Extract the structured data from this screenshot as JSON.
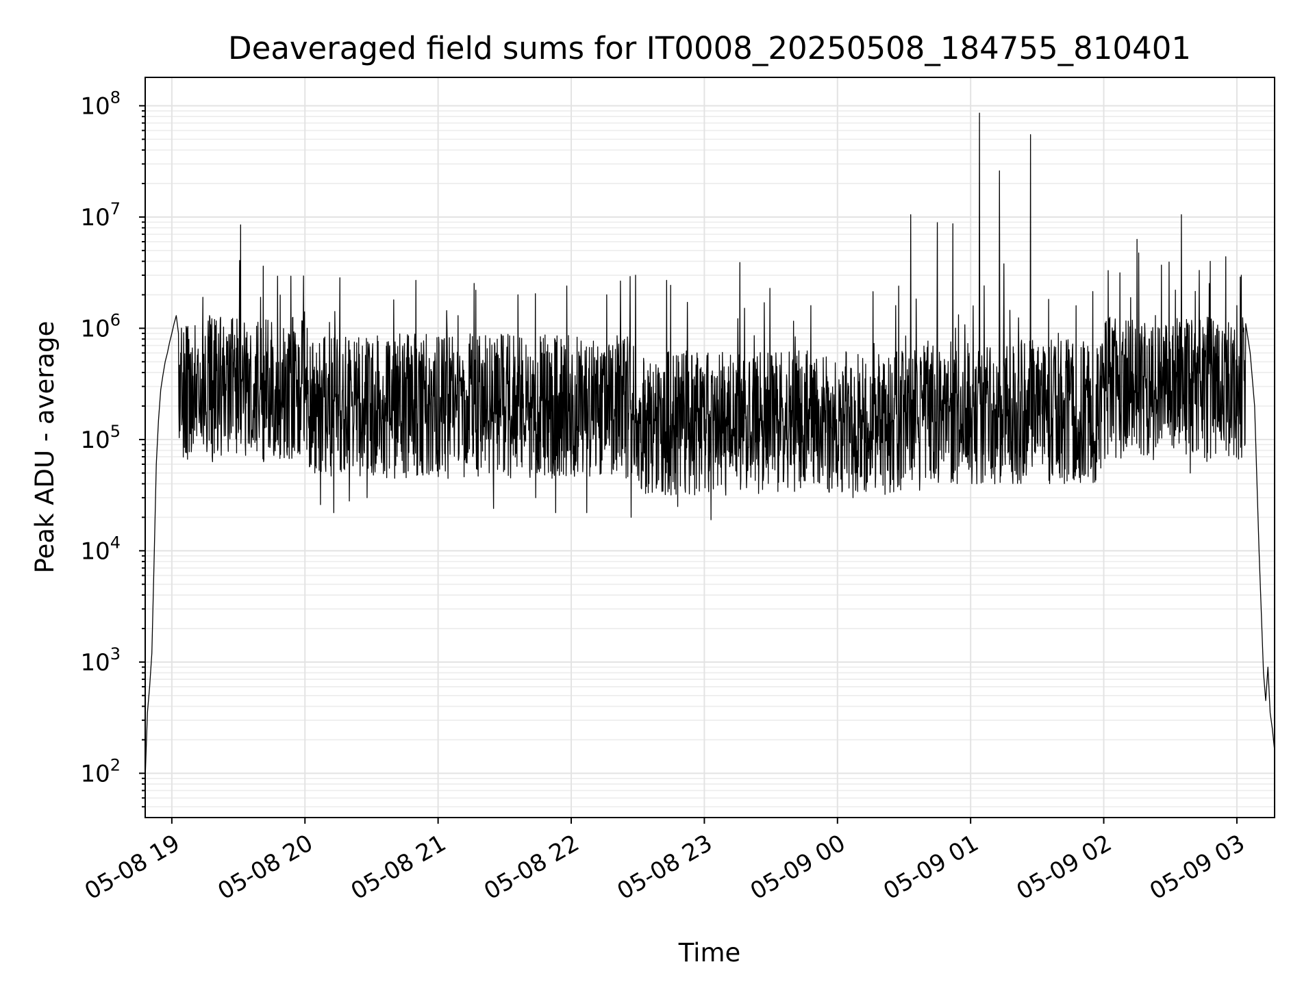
{
  "chart_data": {
    "type": "line",
    "title": "Deaveraged field sums for IT0008_20250508_184755_810401",
    "xlabel": "Time",
    "ylabel": "Peak ADU - average",
    "yscale": "log",
    "grid": true,
    "grid_minor": true,
    "legend": "none",
    "xlim": [
      "2025-05-08 18:48",
      "2025-05-09 03:17"
    ],
    "ylim": [
      40,
      180000000
    ],
    "x_ticks": [
      {
        "value": "2025-05-08 19:00",
        "label": "05-08 19"
      },
      {
        "value": "2025-05-08 20:00",
        "label": "05-08 20"
      },
      {
        "value": "2025-05-08 21:00",
        "label": "05-08 21"
      },
      {
        "value": "2025-05-08 22:00",
        "label": "05-08 22"
      },
      {
        "value": "2025-05-08 23:00",
        "label": "05-08 23"
      },
      {
        "value": "2025-05-09 00:00",
        "label": "05-09 00"
      },
      {
        "value": "2025-05-09 01:00",
        "label": "05-09 01"
      },
      {
        "value": "2025-05-09 02:00",
        "label": "05-09 02"
      },
      {
        "value": "2025-05-09 03:00",
        "label": "05-09 03"
      }
    ],
    "y_ticks": [
      {
        "value": 100,
        "base": "10",
        "exp": "2"
      },
      {
        "value": 1000,
        "base": "10",
        "exp": "3"
      },
      {
        "value": 10000,
        "base": "10",
        "exp": "4"
      },
      {
        "value": 100000,
        "base": "10",
        "exp": "5"
      },
      {
        "value": 1000000,
        "base": "10",
        "exp": "6"
      },
      {
        "value": 10000000,
        "base": "10",
        "exp": "7"
      },
      {
        "value": 100000000,
        "base": "10",
        "exp": "8"
      }
    ],
    "line_color": "#000000",
    "series": [
      {
        "points": [
          [
            "2025-05-08 18:48",
            90
          ],
          [
            "2025-05-08 18:49",
            350
          ],
          [
            "2025-05-08 18:50",
            600
          ],
          [
            "2025-05-08 18:51",
            1200
          ],
          [
            "2025-05-08 18:52",
            8000
          ],
          [
            "2025-05-08 18:53",
            60000
          ],
          [
            "2025-05-08 18:54",
            150000
          ],
          [
            "2025-05-08 18:55",
            280000
          ],
          [
            "2025-05-08 18:56",
            380000
          ],
          [
            "2025-05-08 18:57",
            500000
          ],
          [
            "2025-05-08 18:58",
            600000
          ],
          [
            "2025-05-08 18:59",
            750000
          ],
          [
            "2025-05-08 19:00",
            900000
          ],
          [
            "2025-05-08 19:01",
            1100000
          ],
          [
            "2025-05-08 19:02",
            1300000
          ],
          [
            "2025-05-08 19:03",
            900000
          ],
          [
            "2025-05-08 19:04",
            600000
          ],
          [
            "2025-05-08 19:05",
            400000
          ],
          [
            "2025-05-08 19:06",
            300000
          ],
          [
            "2025-05-08 19:08",
            500000
          ],
          [
            "2025-05-08 19:10",
            250000
          ],
          [
            "2025-05-08 19:14",
            1900000
          ],
          [
            "2025-05-08 19:17",
            1300000
          ],
          [
            "2025-05-08 19:31",
            8500000
          ],
          [
            "2025-05-08 19:40",
            1900000
          ],
          [
            "2025-05-08 20:01",
            1000000
          ],
          [
            "2025-05-08 20:07",
            26000
          ],
          [
            "2025-05-08 20:13",
            22000
          ],
          [
            "2025-05-08 20:20",
            28000
          ],
          [
            "2025-05-08 20:28",
            30000
          ],
          [
            "2025-05-08 20:40",
            1800000
          ],
          [
            "2025-05-08 20:50",
            2700000
          ],
          [
            "2025-05-08 21:09",
            1300000
          ],
          [
            "2025-05-08 21:17",
            2200000
          ],
          [
            "2025-05-08 21:25",
            24000
          ],
          [
            "2025-05-08 21:36",
            2000000
          ],
          [
            "2025-05-08 21:44",
            30000
          ],
          [
            "2025-05-08 21:53",
            22000
          ],
          [
            "2025-05-08 21:58",
            2400000
          ],
          [
            "2025-05-08 22:07",
            22000
          ],
          [
            "2025-05-08 22:16",
            2000000
          ],
          [
            "2025-05-08 22:27",
            20000
          ],
          [
            "2025-05-08 22:29",
            3000000
          ],
          [
            "2025-05-08 22:43",
            2700000
          ],
          [
            "2025-05-08 22:48",
            25000
          ],
          [
            "2025-05-08 23:03",
            19000
          ],
          [
            "2025-05-08 23:16",
            3900000
          ],
          [
            "2025-05-08 23:27",
            1700000
          ],
          [
            "2025-05-08 23:48",
            1600000
          ],
          [
            "2025-05-09 00:07",
            30000
          ],
          [
            "2025-05-09 00:33",
            10500000
          ],
          [
            "2025-05-09 00:37",
            35000
          ],
          [
            "2025-05-09 00:45",
            8900000
          ],
          [
            "2025-05-09 00:52",
            8700000
          ],
          [
            "2025-05-09 01:04",
            86000000
          ],
          [
            "2025-05-09 01:13",
            26000000
          ],
          [
            "2025-05-09 01:15",
            3800000
          ],
          [
            "2025-05-09 01:27",
            55000000
          ],
          [
            "2025-05-09 01:40",
            50000
          ],
          [
            "2025-05-09 02:02",
            3300000
          ],
          [
            "2025-05-09 02:15",
            6300000
          ],
          [
            "2025-05-09 02:26",
            3700000
          ],
          [
            "2025-05-09 02:35",
            10500000
          ],
          [
            "2025-05-09 02:39",
            50000
          ],
          [
            "2025-05-09 02:48",
            4000000
          ],
          [
            "2025-05-09 02:55",
            4400000
          ],
          [
            "2025-05-09 03:00",
            1600000
          ],
          [
            "2025-05-09 03:02",
            3000000
          ],
          [
            "2025-05-09 03:04",
            1100000
          ],
          [
            "2025-05-09 03:06",
            600000
          ],
          [
            "2025-05-09 03:08",
            200000
          ],
          [
            "2025-05-09 03:10",
            10000
          ],
          [
            "2025-05-09 03:12",
            800
          ],
          [
            "2025-05-09 03:13",
            450
          ],
          [
            "2025-05-09 03:14",
            900
          ],
          [
            "2025-05-09 03:15",
            350
          ],
          [
            "2025-05-09 03:16",
            250
          ],
          [
            "2025-05-09 03:17",
            160
          ]
        ]
      }
    ]
  }
}
